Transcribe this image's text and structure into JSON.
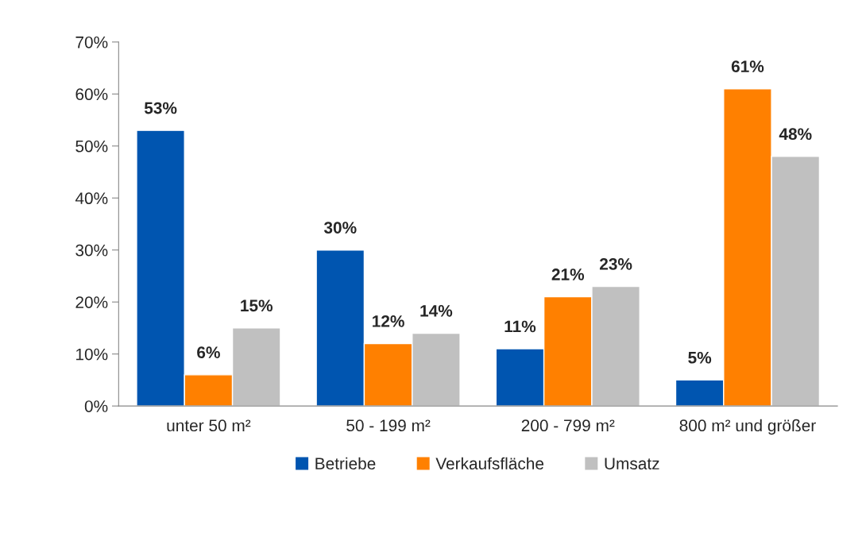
{
  "chart_data": {
    "type": "bar",
    "categories": [
      "unter 50 m²",
      "50 - 199 m²",
      "200 - 799 m²",
      "800 m² und größer"
    ],
    "series": [
      {
        "name": "Betriebe",
        "color": "#0055b0",
        "values": [
          53,
          30,
          11,
          5
        ],
        "value_labels": [
          "53%",
          "30%",
          "11%",
          "5%"
        ]
      },
      {
        "name": "Verkaufsfläche",
        "color": "#ff8000",
        "values": [
          6,
          12,
          21,
          61
        ],
        "value_labels": [
          "6%",
          "12%",
          "21%",
          "61%"
        ]
      },
      {
        "name": "Umsatz",
        "color": "#c0c0c0",
        "values": [
          15,
          14,
          23,
          48
        ],
        "value_labels": [
          "15%",
          "14%",
          "23%",
          "48%"
        ]
      }
    ],
    "ylim": [
      0,
      70
    ],
    "yticks": [
      {
        "value": 0,
        "label": "0%"
      },
      {
        "value": 10,
        "label": "10%"
      },
      {
        "value": 20,
        "label": "20%"
      },
      {
        "value": 30,
        "label": "30%"
      },
      {
        "value": 40,
        "label": "40%"
      },
      {
        "value": 50,
        "label": "50%"
      },
      {
        "value": 60,
        "label": "60%"
      },
      {
        "value": 70,
        "label": "70%"
      }
    ],
    "grid": false,
    "legend": "bottom"
  }
}
